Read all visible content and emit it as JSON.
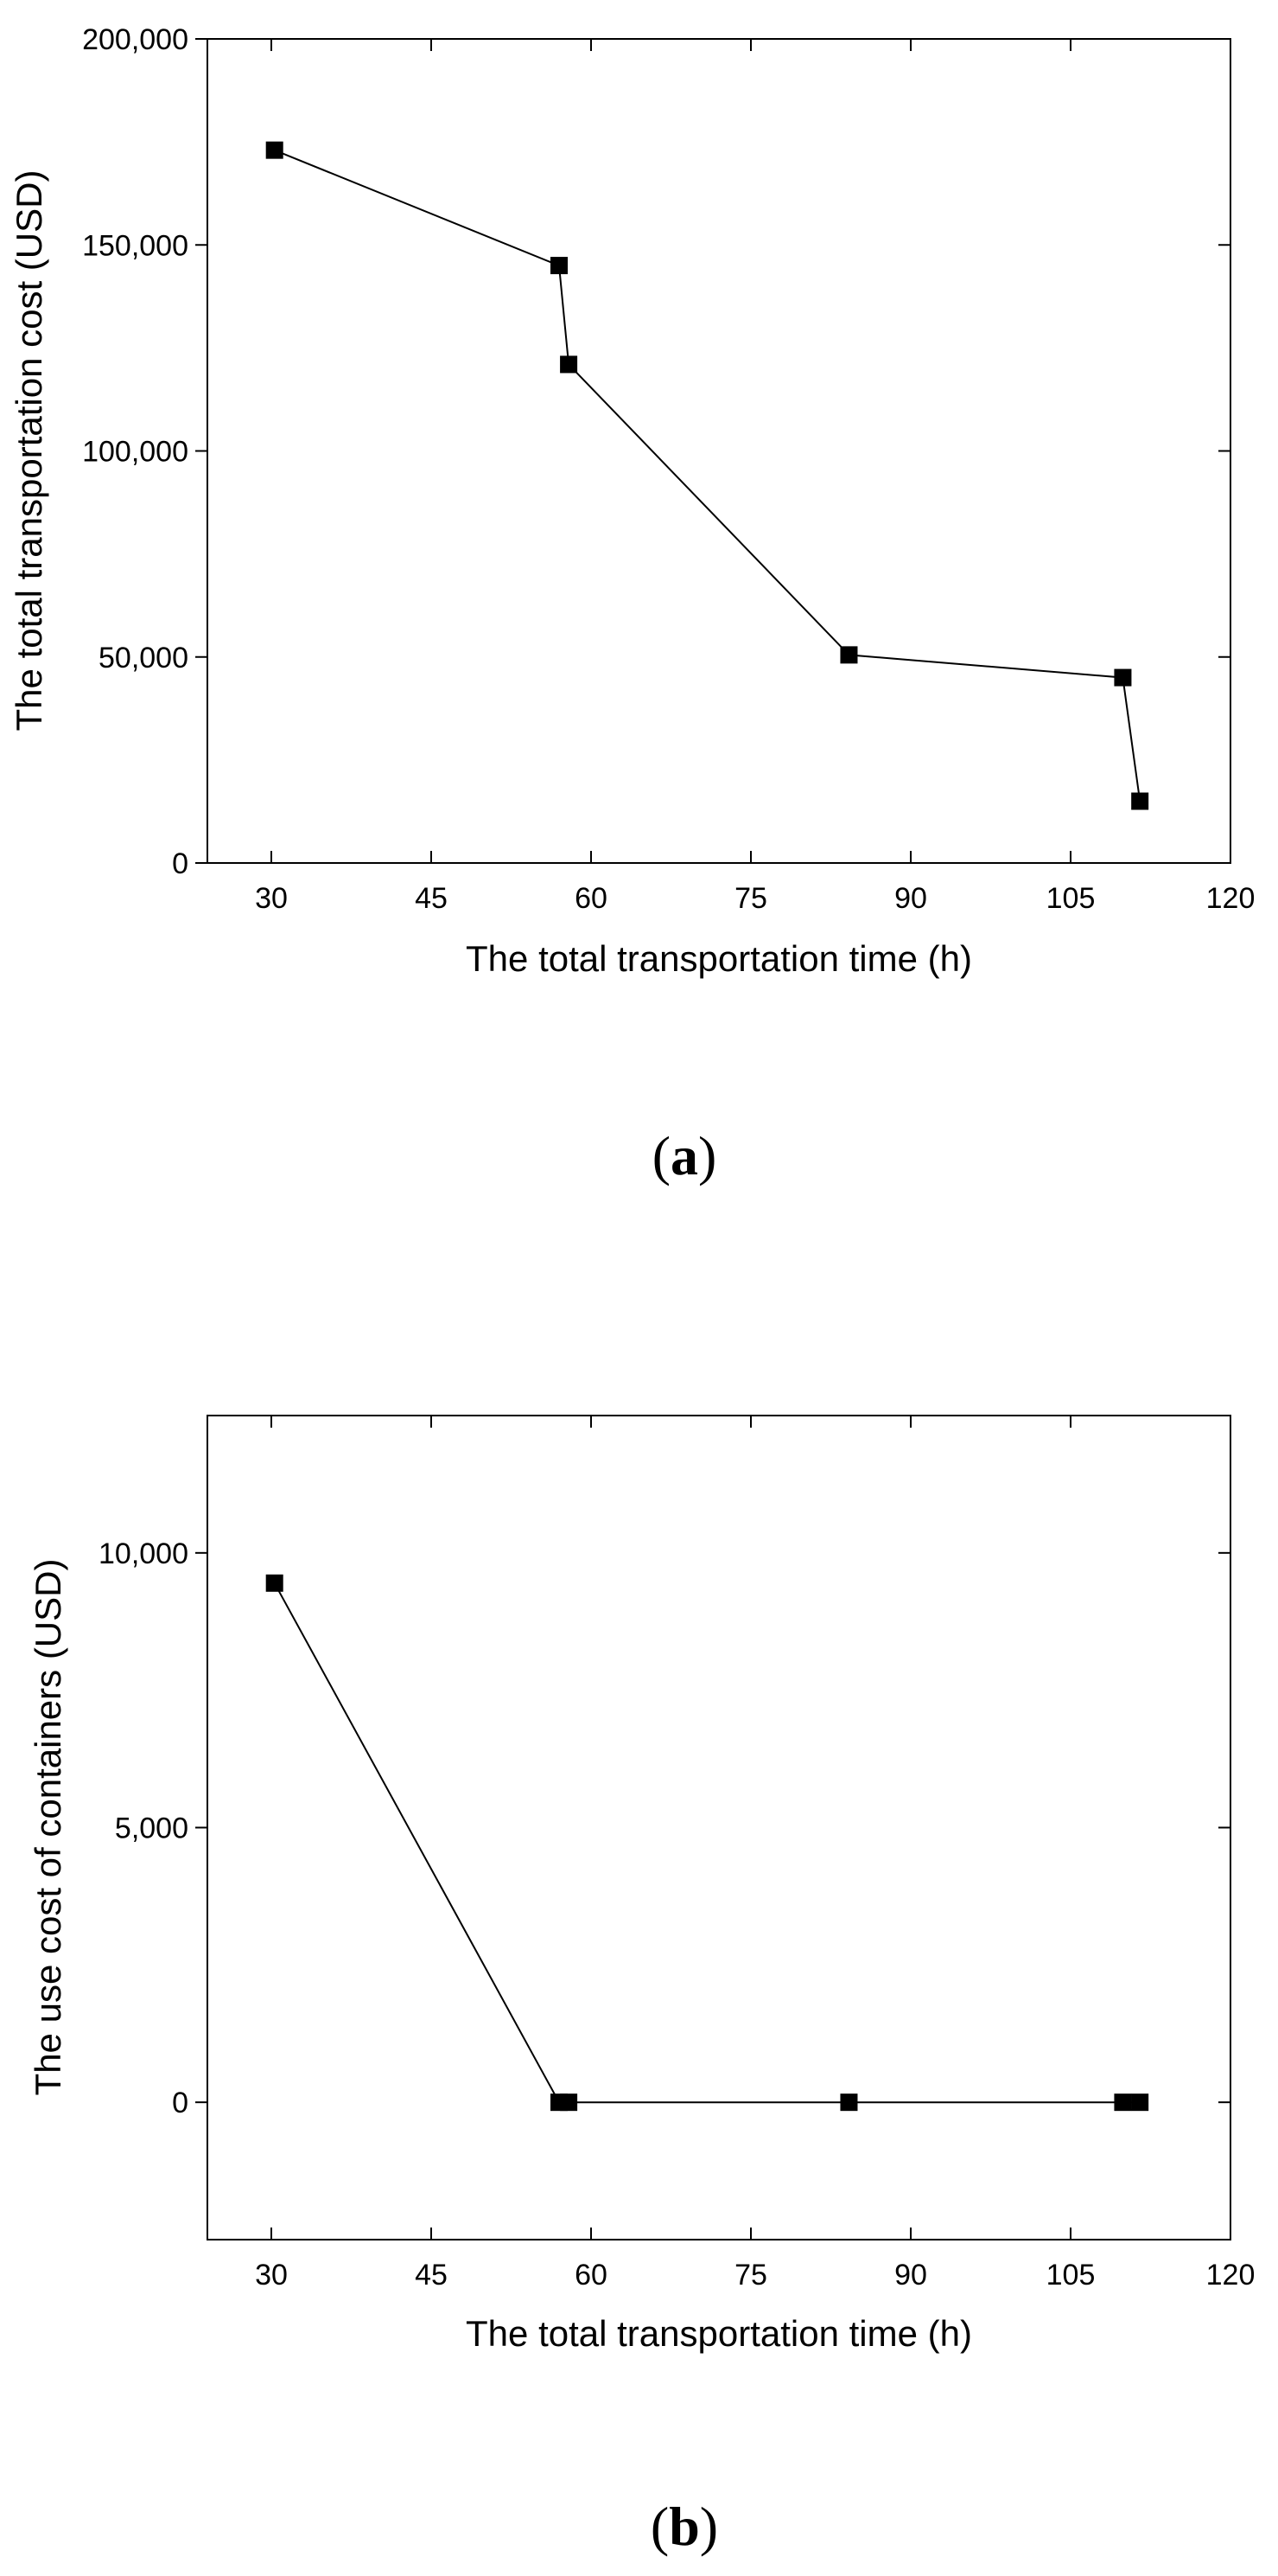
{
  "chart_data": [
    {
      "type": "line",
      "panel_label": "a",
      "xlabel": "The total transportation time (h)",
      "ylabel": "The total transportation cost (USD)",
      "xlim": [
        24,
        120
      ],
      "ylim": [
        0,
        200000
      ],
      "x_ticks": [
        30,
        45,
        60,
        75,
        90,
        105,
        120
      ],
      "y_ticks": [
        0,
        50000,
        100000,
        150000,
        200000
      ],
      "y_tick_labels": [
        "0",
        "50,000",
        "100,000",
        "150,000",
        "200,000"
      ],
      "marker": "square",
      "series": [
        {
          "x": [
            30.3,
            57.0,
            57.9,
            84.2,
            109.9,
            111.5
          ],
          "y": [
            173000,
            145000,
            121000,
            50500,
            45000,
            15000
          ]
        }
      ]
    },
    {
      "type": "line",
      "panel_label": "b",
      "xlabel": "The total transportation time (h)",
      "ylabel": "The use cost of containers (USD)",
      "xlim": [
        24,
        120
      ],
      "ylim": [
        -2500,
        12500
      ],
      "x_ticks": [
        30,
        45,
        60,
        75,
        90,
        105,
        120
      ],
      "y_ticks": [
        0,
        5000,
        10000
      ],
      "y_tick_labels": [
        "0",
        "5,000",
        "10,000"
      ],
      "marker": "square",
      "series": [
        {
          "x": [
            30.3,
            57.0,
            57.9,
            84.2,
            109.9,
            111.5
          ],
          "y": [
            9450,
            0,
            0,
            0,
            0,
            0
          ]
        }
      ]
    }
  ]
}
